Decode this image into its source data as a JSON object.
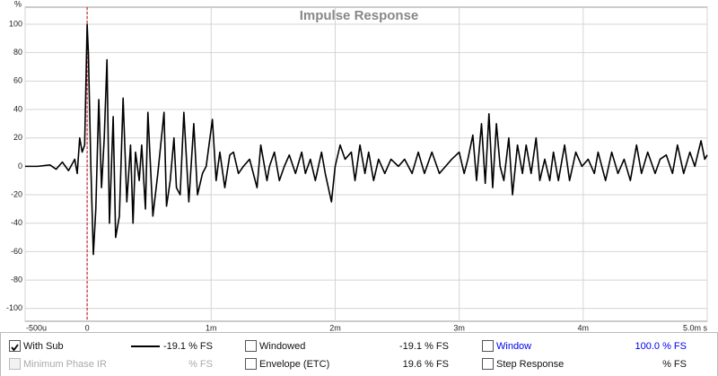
{
  "chart_data": {
    "type": "line",
    "title": "Impulse Response",
    "y_unit": "%",
    "x": [
      -0.5,
      -0.4,
      -0.3,
      -0.25,
      -0.2,
      -0.15,
      -0.1,
      -0.08,
      -0.06,
      -0.04,
      -0.02,
      0,
      0.01,
      0.03,
      0.05,
      0.07,
      0.094,
      0.116,
      0.138,
      0.16,
      0.18,
      0.21,
      0.23,
      0.26,
      0.29,
      0.32,
      0.35,
      0.37,
      0.39,
      0.42,
      0.44,
      0.47,
      0.49,
      0.53,
      0.57,
      0.62,
      0.64,
      0.67,
      0.7,
      0.72,
      0.75,
      0.78,
      0.82,
      0.86,
      0.89,
      0.93,
      0.96,
      1.01,
      1.04,
      1.07,
      1.11,
      1.15,
      1.18,
      1.22,
      1.26,
      1.31,
      1.37,
      1.4,
      1.45,
      1.47,
      1.51,
      1.55,
      1.59,
      1.63,
      1.68,
      1.73,
      1.76,
      1.8,
      1.84,
      1.89,
      1.92,
      1.97,
      2.0,
      2.04,
      2.08,
      2.13,
      2.16,
      2.2,
      2.24,
      2.27,
      2.31,
      2.35,
      2.4,
      2.45,
      2.51,
      2.56,
      2.62,
      2.67,
      2.72,
      2.78,
      2.84,
      2.89,
      2.94,
      3.0,
      3.04,
      3.07,
      3.11,
      3.14,
      3.18,
      3.21,
      3.24,
      3.27,
      3.3,
      3.33,
      3.36,
      3.4,
      3.43,
      3.47,
      3.51,
      3.54,
      3.58,
      3.62,
      3.65,
      3.69,
      3.73,
      3.76,
      3.8,
      3.85,
      3.89,
      3.94,
      3.99,
      4.04,
      4.09,
      4.12,
      4.18,
      4.23,
      4.28,
      4.33,
      4.38,
      4.43,
      4.47,
      4.52,
      4.58,
      4.62,
      4.67,
      4.72,
      4.76,
      4.81,
      4.86,
      4.9,
      4.95,
      4.98,
      5.0
    ],
    "series": [
      {
        "name": "With Sub",
        "color": "#000000",
        "readout": "-19.1 % FS",
        "values": [
          0,
          0,
          1,
          -2,
          3,
          -3,
          5,
          -5,
          20,
          10,
          15,
          100,
          80,
          0,
          -62,
          -30,
          47,
          -15,
          20,
          75,
          -40,
          35,
          -50,
          -35,
          48,
          -25,
          15,
          -40,
          10,
          -10,
          15,
          -30,
          38,
          -35,
          -5,
          38,
          -28,
          -10,
          20,
          -15,
          -20,
          38,
          -25,
          30,
          -20,
          -5,
          0,
          33,
          -10,
          10,
          -15,
          8,
          10,
          -5,
          0,
          5,
          -15,
          15,
          -10,
          0,
          10,
          -10,
          0,
          8,
          -5,
          10,
          -5,
          5,
          -10,
          10,
          -5,
          -25,
          0,
          15,
          5,
          10,
          -10,
          15,
          -5,
          10,
          -10,
          5,
          -5,
          5,
          0,
          5,
          -5,
          10,
          -5,
          10,
          -5,
          0,
          5,
          10,
          -5,
          5,
          22,
          -10,
          30,
          -12,
          37,
          -15,
          30,
          0,
          -10,
          20,
          -20,
          15,
          -5,
          15,
          -5,
          20,
          -10,
          5,
          -10,
          10,
          -10,
          15,
          -10,
          10,
          0,
          5,
          -5,
          10,
          -10,
          10,
          -5,
          5,
          -10,
          15,
          -5,
          10,
          -5,
          5,
          8,
          -5,
          15,
          -5,
          10,
          0,
          18,
          5,
          8
        ]
      }
    ],
    "xlim": [
      -0.5,
      5.0
    ],
    "ylim": [
      -109,
      112
    ],
    "xticks": [
      {
        "value": -0.5,
        "label": "-500u"
      },
      0,
      {
        "value": 1,
        "label": "1m"
      },
      {
        "value": 2,
        "label": "2m"
      },
      {
        "value": 3,
        "label": "3m"
      },
      {
        "value": 4,
        "label": "4m"
      },
      {
        "value": 5,
        "label": "5.0m s"
      }
    ],
    "yticks": [
      100,
      80,
      60,
      40,
      20,
      0,
      -20,
      -40,
      -60,
      -80,
      -100
    ],
    "grid": true,
    "marker_color": "#cc0000"
  },
  "controls": [
    {
      "label": "Windowed",
      "readout": "-19.1 % FS"
    },
    {
      "label": "Window",
      "readout": "100.0 % FS"
    },
    {
      "label": "Minimum Phase IR",
      "readout": "% FS"
    },
    {
      "label": "Envelope (ETC)",
      "readout": "19.6 % FS"
    },
    {
      "label": "Step Response",
      "readout": "% FS"
    }
  ]
}
